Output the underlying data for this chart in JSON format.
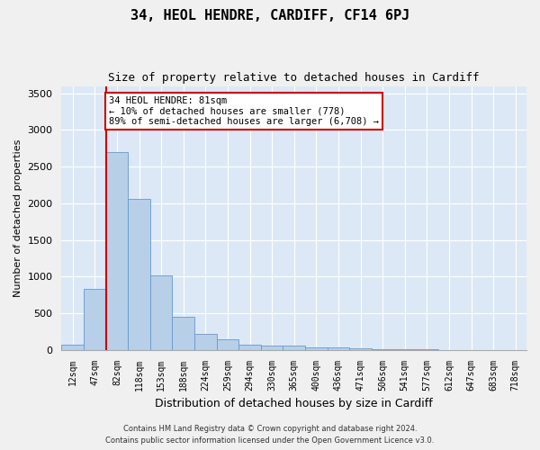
{
  "title1": "34, HEOL HENDRE, CARDIFF, CF14 6PJ",
  "title2": "Size of property relative to detached houses in Cardiff",
  "xlabel": "Distribution of detached houses by size in Cardiff",
  "ylabel": "Number of detached properties",
  "categories": [
    "12sqm",
    "47sqm",
    "82sqm",
    "118sqm",
    "153sqm",
    "188sqm",
    "224sqm",
    "259sqm",
    "294sqm",
    "330sqm",
    "365sqm",
    "400sqm",
    "436sqm",
    "471sqm",
    "506sqm",
    "541sqm",
    "577sqm",
    "612sqm",
    "647sqm",
    "683sqm",
    "718sqm"
  ],
  "values": [
    75,
    830,
    2700,
    2060,
    1010,
    450,
    215,
    140,
    75,
    60,
    55,
    35,
    30,
    20,
    10,
    5,
    3,
    2,
    1,
    1,
    0
  ],
  "bar_color": "#b8cfe8",
  "bar_edge_color": "#6699cc",
  "vline_x": 1.5,
  "vline_color": "#cc0000",
  "annotation_text": "34 HEOL HENDRE: 81sqm\n← 10% of detached houses are smaller (778)\n89% of semi-detached houses are larger (6,708) →",
  "annotation_box_color": "#ffffff",
  "annotation_box_edge": "#cc0000",
  "ylim": [
    0,
    3600
  ],
  "yticks": [
    0,
    500,
    1000,
    1500,
    2000,
    2500,
    3000,
    3500
  ],
  "bg_color": "#dce8f5",
  "fig_bg_color": "#f0f0f0",
  "footer1": "Contains HM Land Registry data © Crown copyright and database right 2024.",
  "footer2": "Contains public sector information licensed under the Open Government Licence v3.0."
}
